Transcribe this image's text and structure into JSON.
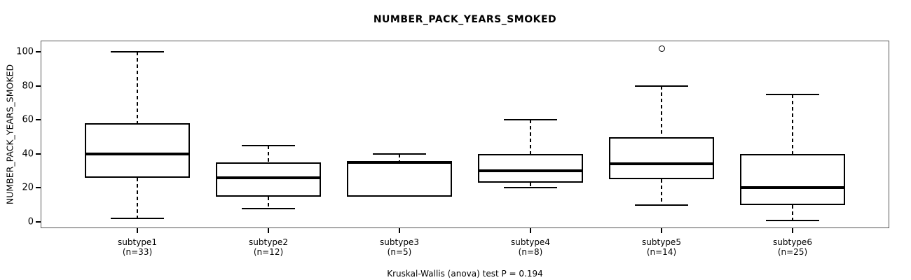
{
  "figure": {
    "title": "NUMBER_PACK_YEARS_SMOKED",
    "y_axis_label": "NUMBER_PACK_YEARS_SMOKED",
    "footnote": "Kruskal-Wallis (anova) test P = 0.194"
  },
  "colors": {
    "line": "#000000",
    "frame": "#555555",
    "background": "#ffffff",
    "box_fill": "#ffffff"
  },
  "chart_data": {
    "type": "boxplot",
    "title": "NUMBER_PACK_YEARS_SMOKED",
    "xlabel": "",
    "ylabel": "NUMBER_PACK_YEARS_SMOKED",
    "ylim": [
      0,
      106
    ],
    "yticks": [
      0,
      20,
      40,
      60,
      80,
      100
    ],
    "grid": false,
    "legend": "none",
    "footnote": "Kruskal-Wallis (anova) test P = 0.194",
    "categories": [
      "subtype1",
      "subtype2",
      "subtype3",
      "subtype4",
      "subtype5",
      "subtype6"
    ],
    "groups": [
      {
        "label": "subtype1",
        "n": 33,
        "n_label": "(n=33)",
        "whisker_low": 2,
        "q1": 26,
        "median": 40,
        "q3": 58,
        "whisker_high": 100,
        "outliers": []
      },
      {
        "label": "subtype2",
        "n": 12,
        "n_label": "(n=12)",
        "whisker_low": 8,
        "q1": 15,
        "median": 26,
        "q3": 35,
        "whisker_high": 45,
        "outliers": []
      },
      {
        "label": "subtype3",
        "n": 5,
        "n_label": "(n=5)",
        "whisker_low": 15,
        "q1": 15,
        "median": 35,
        "q3": 35,
        "whisker_high": 40,
        "outliers": []
      },
      {
        "label": "subtype4",
        "n": 8,
        "n_label": "(n=8)",
        "whisker_low": 20,
        "q1": 23,
        "median": 30,
        "q3": 40,
        "whisker_high": 60,
        "outliers": []
      },
      {
        "label": "subtype5",
        "n": 14,
        "n_label": "(n=14)",
        "whisker_low": 10,
        "q1": 25,
        "median": 34,
        "q3": 50,
        "whisker_high": 80,
        "outliers": [
          102
        ]
      },
      {
        "label": "subtype6",
        "n": 25,
        "n_label": "(n=25)",
        "whisker_low": 1,
        "q1": 10,
        "median": 20,
        "q3": 40,
        "whisker_high": 75,
        "outliers": []
      }
    ]
  }
}
